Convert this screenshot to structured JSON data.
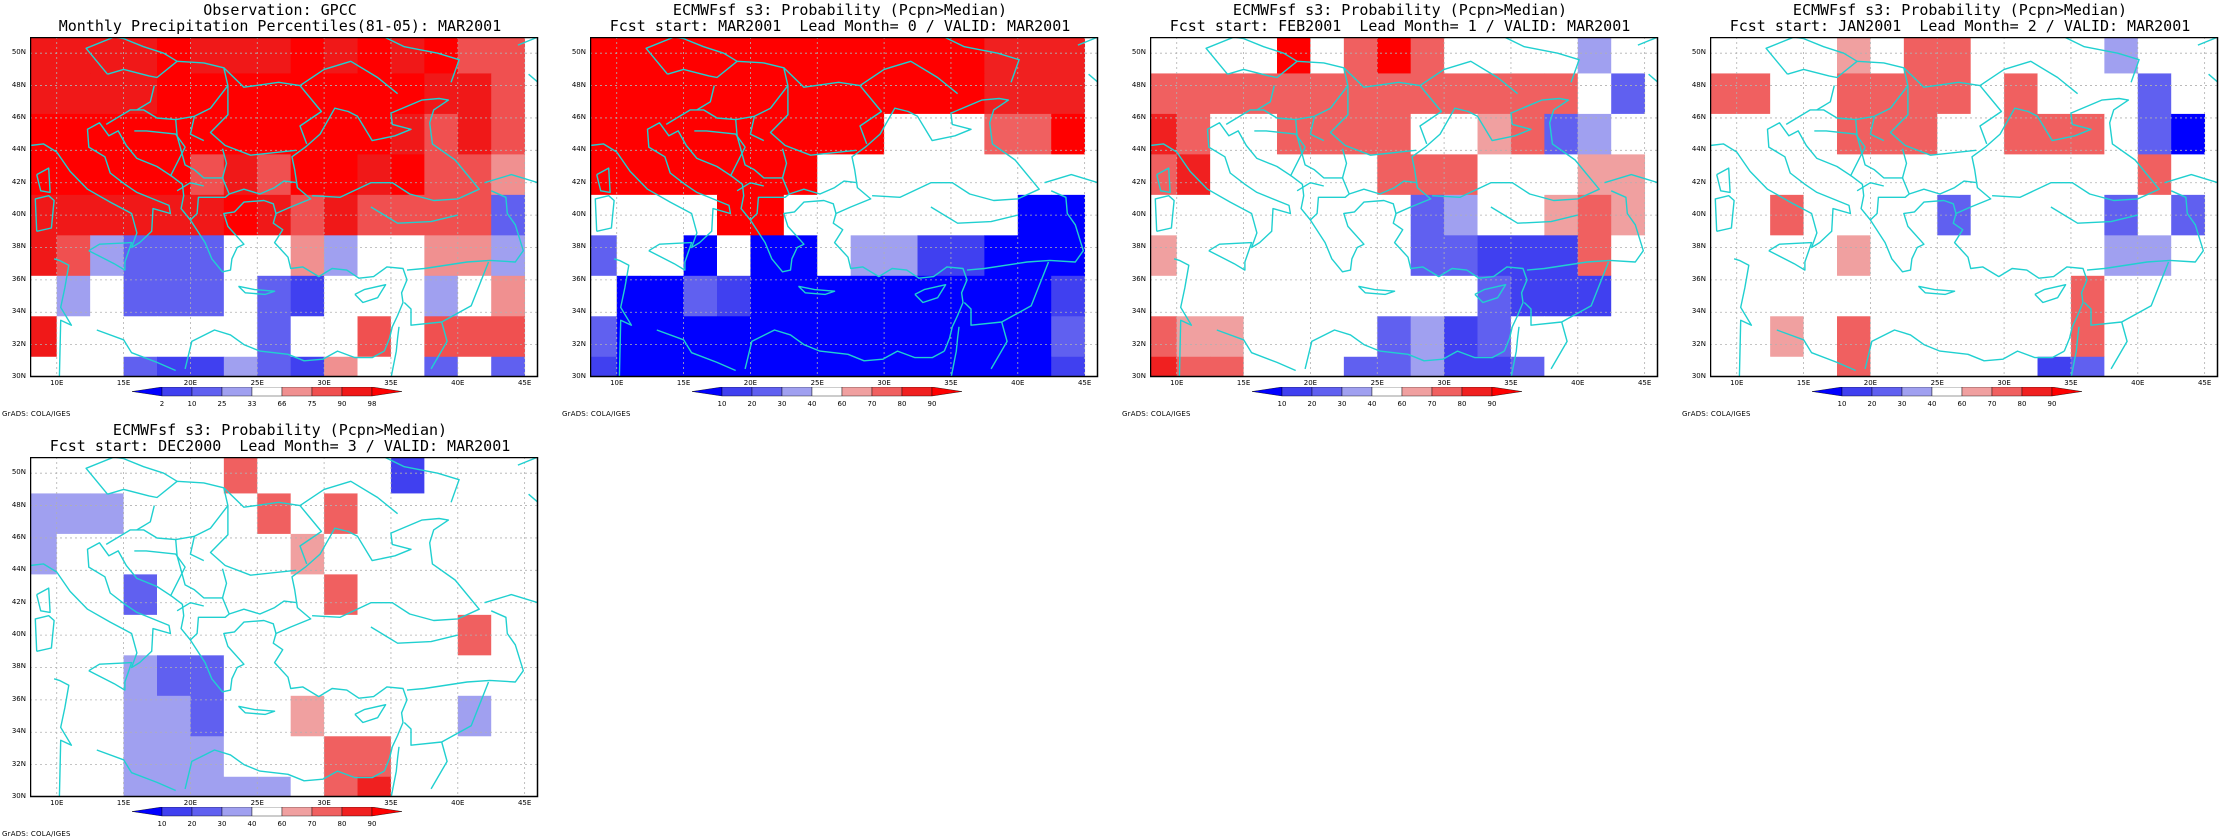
{
  "panels": [
    {
      "id": "obs",
      "title1": "Observation: GPCC",
      "title2": "Monthly Precipitation Percentiles(81-05): MAR2001",
      "credit": "GrADS: COLA/IGES",
      "colorbar": {
        "labels": [
          "2",
          "10",
          "25",
          "33",
          "66",
          "75",
          "90",
          "98"
        ],
        "colors": [
          "#0000ff",
          "#4040f0",
          "#6060f0",
          "#a0a0f0",
          "#ffffff",
          "#f09090",
          "#f05050",
          "#f01818",
          "#ff0000"
        ]
      }
    },
    {
      "id": "lead0",
      "title1": "ECMWFsf s3: Probability (Pcpn>Median)",
      "title2": "Fcst start: MAR2001  Lead Month= 0 / VALID: MAR2001",
      "credit": "GrADS: COLA/IGES",
      "colorbar": {
        "labels": [
          "10",
          "20",
          "30",
          "40",
          "60",
          "70",
          "80",
          "90"
        ],
        "colors": [
          "#0000ff",
          "#4040f0",
          "#6060f0",
          "#a0a0f0",
          "#ffffff",
          "#f0a0a0",
          "#f06060",
          "#f02020",
          "#ff0000"
        ]
      }
    },
    {
      "id": "lead1",
      "title1": "ECMWFsf s3: Probability (Pcpn>Median)",
      "title2": "Fcst start: FEB2001  Lead Month= 1 / VALID: MAR2001",
      "credit": "GrADS: COLA/IGES",
      "colorbar": {
        "labels": [
          "10",
          "20",
          "30",
          "40",
          "60",
          "70",
          "80",
          "90"
        ],
        "colors": [
          "#0000ff",
          "#4040f0",
          "#6060f0",
          "#a0a0f0",
          "#ffffff",
          "#f0a0a0",
          "#f06060",
          "#f02020",
          "#ff0000"
        ]
      }
    },
    {
      "id": "lead2",
      "title1": "ECMWFsf s3: Probability (Pcpn>Median)",
      "title2": "Fcst start: JAN2001  Lead Month= 2 / VALID: MAR2001",
      "credit": "GrADS: COLA/IGES",
      "colorbar": {
        "labels": [
          "10",
          "20",
          "30",
          "40",
          "60",
          "70",
          "80",
          "90"
        ],
        "colors": [
          "#0000ff",
          "#4040f0",
          "#6060f0",
          "#a0a0f0",
          "#ffffff",
          "#f0a0a0",
          "#f06060",
          "#f02020",
          "#ff0000"
        ]
      }
    },
    {
      "id": "lead3",
      "title1": "ECMWFsf s3: Probability (Pcpn>Median)",
      "title2": "Fcst start: DEC2000  Lead Month= 3 / VALID: MAR2001",
      "credit": "GrADS: COLA/IGES",
      "colorbar": {
        "labels": [
          "10",
          "20",
          "30",
          "40",
          "60",
          "70",
          "80",
          "90"
        ],
        "colors": [
          "#0000ff",
          "#4040f0",
          "#6060f0",
          "#a0a0f0",
          "#ffffff",
          "#f0a0a0",
          "#f06060",
          "#f02020",
          "#ff0000"
        ]
      }
    }
  ],
  "axes": {
    "lon_labels": [
      "10E",
      "15E",
      "20E",
      "25E",
      "30E",
      "35E",
      "40E",
      "45E"
    ],
    "lat_labels": [
      "30N",
      "32N",
      "34N",
      "36N",
      "38N",
      "40N",
      "42N",
      "44N",
      "46N",
      "48N",
      "50N"
    ],
    "lon_range": [
      8,
      46
    ],
    "lat_range": [
      30,
      51
    ]
  },
  "colors": {
    "coastline": "#20d0d0",
    "grid": "#b0b0b0",
    "frame": "#000000"
  },
  "cell_size_deg": 2.5,
  "grid_cols": 15,
  "grid_rows": 9,
  "fields": {
    "obs": [
      "777787778787866",
      "777788888888776",
      "888888888887676",
      "888886768878665",
      "777777876766662",
      "763222445344553",
      "434222421444345",
      "744444424464666",
      "444211321544242"
    ],
    "lead0": [
      "888888888888777",
      "888888888888777",
      "888888888444668",
      "888888844444444",
      "444488444444400",
      "244040043311000",
      "400210000000001",
      "200000000000002",
      "100000000000001"
    ],
    "lead1": [
      "444484686444434",
      "666666666666642",
      "764466664456234",
      "674444466644455",
      "444444442344565",
      "544444442211164",
      "444444444421114",
      "655444423124444",
      "766444223112444"
    ],
    "lead2": [
      "444454664444344",
      "664466664644424",
      "444466644666420",
      "444444444444464",
      "446444424444242",
      "444454444444334",
      "444444444446444",
      "445464444446444",
      "444464444412444"
    ],
    "lead3": [
      "444444644441444",
      "333444464644444",
      "344444445444444",
      "444244444644444",
      "444444444444464",
      "444322444444444",
      "444332445444434",
      "444333444664444",
      "444333334674444"
    ]
  }
}
